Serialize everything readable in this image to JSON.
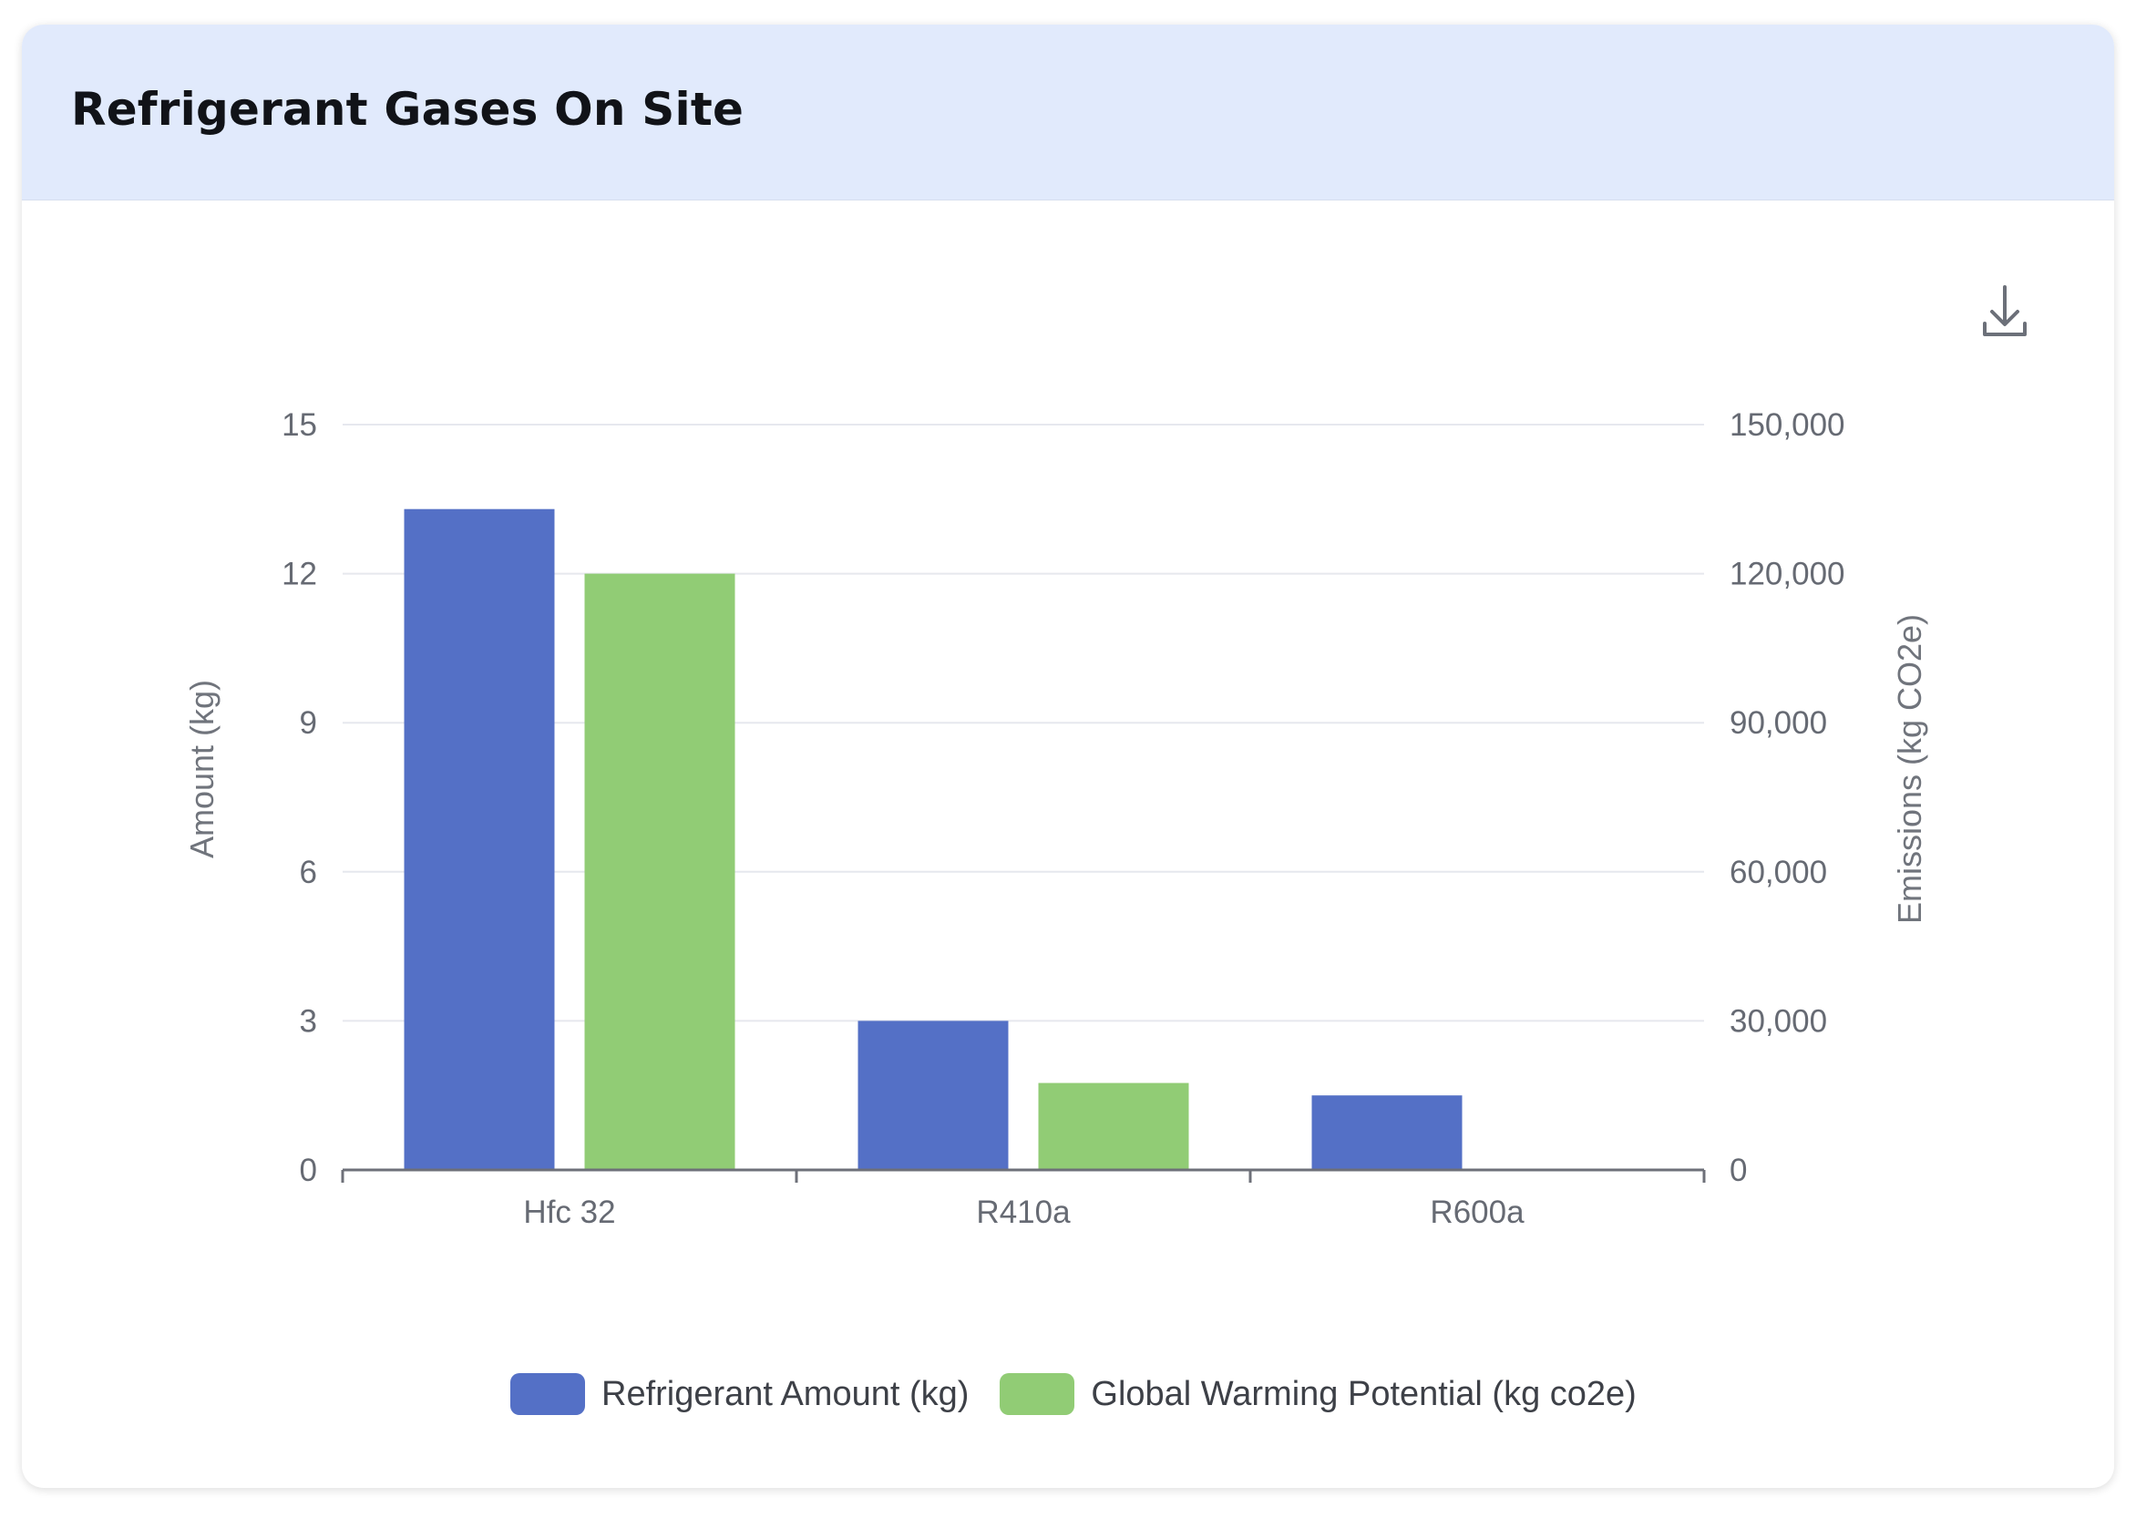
{
  "card": {
    "title": "Refrigerant Gases On Site"
  },
  "toolbar": {
    "download_icon": "download-icon"
  },
  "colors": {
    "primary": "#5470c6",
    "secondary": "#91cc75",
    "grid": "#e6e8ee",
    "axis": "#6e7079"
  },
  "chart_data": {
    "type": "bar",
    "categories": [
      "Hfc 32",
      "R410a",
      "R600a"
    ],
    "series": [
      {
        "name": "Refrigerant Amount (kg)",
        "axis": "left",
        "color": "#5470c6",
        "values": [
          13.3,
          3.0,
          1.5
        ]
      },
      {
        "name": "Global Warming Potential (kg co2e)",
        "axis": "right",
        "color": "#91cc75",
        "values": [
          120000,
          17500,
          0
        ]
      }
    ],
    "y_left": {
      "label": "Amount (kg)",
      "min": 0,
      "max": 15,
      "ticks": [
        "0",
        "3",
        "6",
        "9",
        "12",
        "15"
      ]
    },
    "y_right": {
      "label": "Emissions (kg CO2e)",
      "min": 0,
      "max": 150000,
      "ticks": [
        "0",
        "30,000",
        "60,000",
        "90,000",
        "120,000",
        "150,000"
      ]
    },
    "grid": true,
    "legend_position": "bottom-center"
  }
}
